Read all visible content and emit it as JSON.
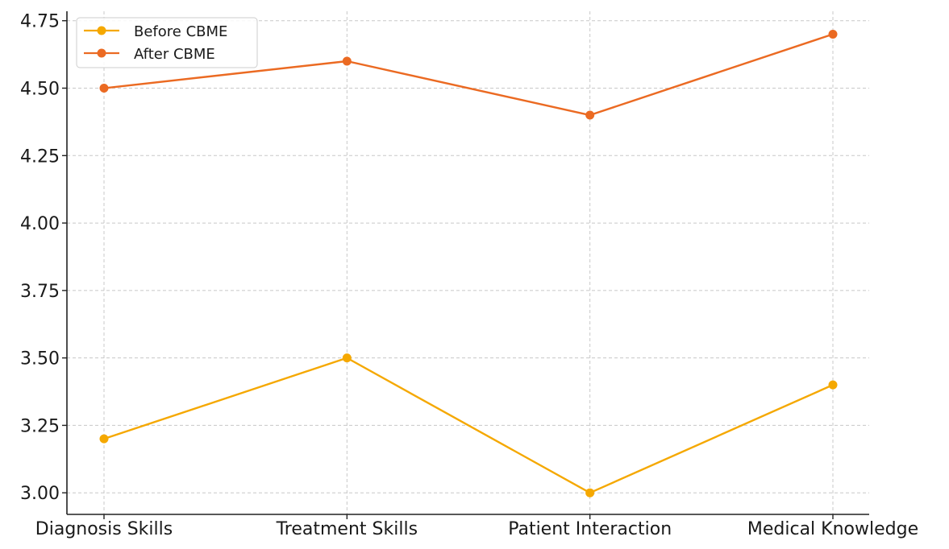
{
  "chart_data": {
    "type": "line",
    "categories": [
      "Diagnosis Skills",
      "Treatment Skills",
      "Patient Interaction",
      "Medical Knowledge"
    ],
    "series": [
      {
        "name": "Before CBME",
        "values": [
          3.2,
          3.5,
          3.0,
          3.4
        ],
        "color": "#F5A800"
      },
      {
        "name": "After CBME",
        "values": [
          4.5,
          4.6,
          4.4,
          4.7
        ],
        "color": "#EB6A22"
      }
    ],
    "y_ticks": [
      "3.00",
      "3.25",
      "3.50",
      "3.75",
      "4.00",
      "4.25",
      "4.50",
      "4.75"
    ],
    "ylim": [
      2.92,
      4.785
    ],
    "grid": true,
    "legend_position": "upper-left",
    "title": "",
    "xlabel": "",
    "ylabel": ""
  }
}
